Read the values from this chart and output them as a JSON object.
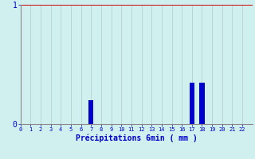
{
  "xlabel": "Précipitations 6min ( mm )",
  "background_color": "#d0f0f0",
  "bar_color": "#0000cc",
  "grid_color_x": "#b0c8c8",
  "grid_color_y_top": "#cc0000",
  "grid_color_y_bot": "#b0c8c8",
  "x_values": [
    7,
    17,
    18
  ],
  "y_values": [
    0.2,
    0.35,
    0.35
  ],
  "xlim": [
    0,
    23
  ],
  "ylim": [
    0,
    1.0
  ],
  "ytick_labels": [
    "0",
    "1"
  ],
  "ytick_values": [
    0,
    1
  ],
  "xticks": [
    0,
    1,
    2,
    3,
    4,
    5,
    6,
    7,
    8,
    9,
    10,
    11,
    12,
    13,
    14,
    15,
    16,
    17,
    18,
    19,
    20,
    21,
    22
  ],
  "tick_color": "#0000cc",
  "label_color": "#0000cc",
  "spine_color": "#888888",
  "bar_width": 0.5
}
